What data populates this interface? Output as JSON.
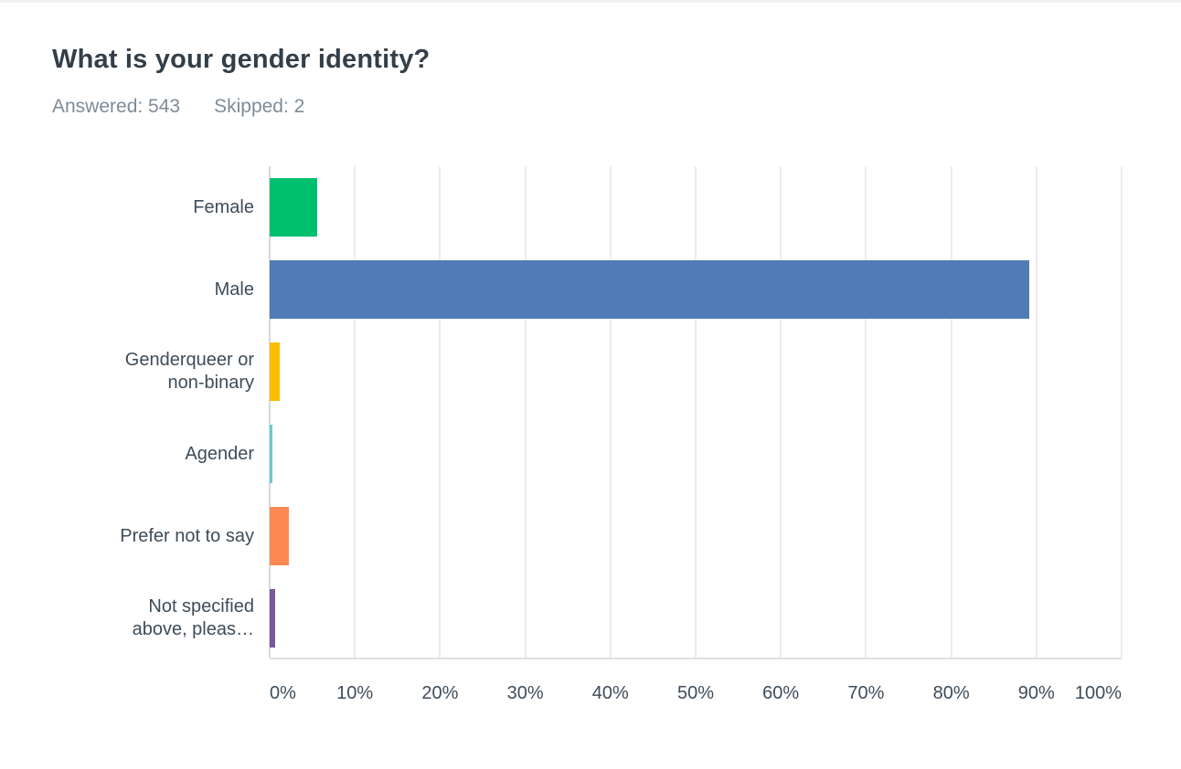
{
  "header": {
    "title": "What is your gender identity?",
    "answered": "Answered: 543",
    "skipped": "Skipped: 2"
  },
  "chart_data": {
    "type": "bar",
    "orientation": "horizontal",
    "title": "What is your gender identity?",
    "categories": [
      "Female",
      "Male",
      "Genderqueer or non-binary",
      "Agender",
      "Prefer not to say",
      "Not specified above, pleas…"
    ],
    "values": [
      5.6,
      89.2,
      1.2,
      0.3,
      2.2,
      0.6
    ],
    "value_unit": "%",
    "bar_colors": [
      "#00BF6F",
      "#507CB6",
      "#F9BE00",
      "#6FC9CB",
      "#FC8A52",
      "#7A589D"
    ],
    "x_ticks": [
      "0%",
      "10%",
      "20%",
      "30%",
      "40%",
      "50%",
      "60%",
      "70%",
      "80%",
      "90%",
      "100%"
    ],
    "xlim": [
      0,
      100
    ],
    "grid": true,
    "legend": false
  },
  "colors": {
    "title_text": "#333e48",
    "subtitle_text": "#7f8b96",
    "axis_text": "#3e4c59",
    "gridline": "#ececec",
    "axis_line": "#d6d9dc"
  }
}
